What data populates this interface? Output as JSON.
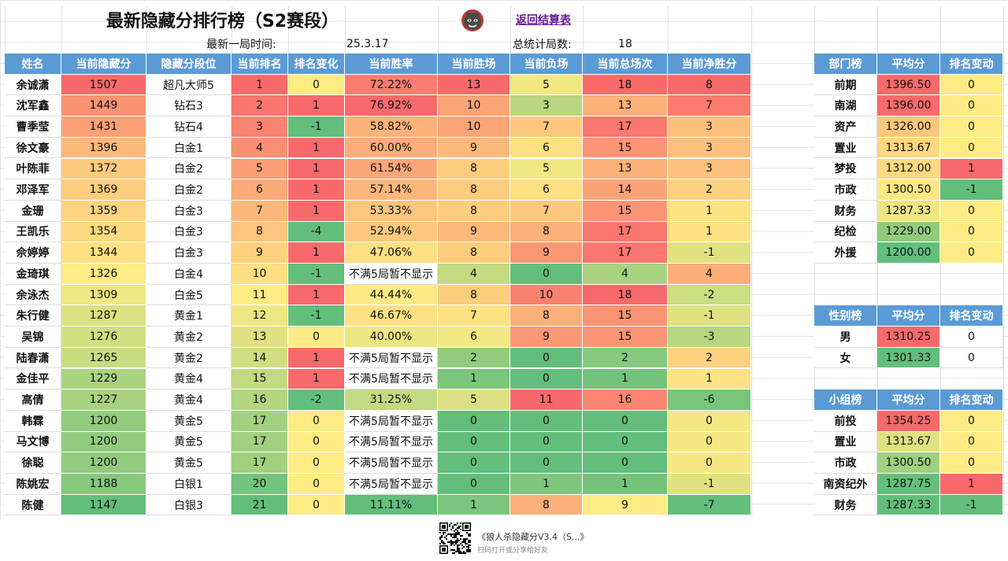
{
  "title": "最新隐藏分排行榜（S2赛段）",
  "back_link": "返回结算表",
  "meta": {
    "last_game_label": "最新一局时间:",
    "last_game_value": "25.3.17",
    "total_games_label": "总统计局数:",
    "total_games_value": "18"
  },
  "main_table": {
    "columns": [
      "姓名",
      "当前隐藏分",
      "隐藏分段位",
      "当前排名",
      "排名变化",
      "当前胜率",
      "当前胜场",
      "当前负场",
      "当前总场次",
      "当前净胜分"
    ],
    "rows": [
      [
        "余诚潇",
        "1507",
        "超凡大师5",
        "1",
        "0",
        "72.22%",
        "13",
        "5",
        "18",
        "8"
      ],
      [
        "沈军鑫",
        "1449",
        "钻石3",
        "2",
        "1",
        "76.92%",
        "10",
        "3",
        "13",
        "7"
      ],
      [
        "曹季莹",
        "1431",
        "钻石4",
        "3",
        "-1",
        "58.82%",
        "10",
        "7",
        "17",
        "3"
      ],
      [
        "徐文豪",
        "1396",
        "白金1",
        "4",
        "1",
        "60.00%",
        "9",
        "6",
        "15",
        "3"
      ],
      [
        "叶陈菲",
        "1372",
        "白金2",
        "5",
        "1",
        "61.54%",
        "8",
        "5",
        "13",
        "3"
      ],
      [
        "邓泽军",
        "1369",
        "白金2",
        "6",
        "1",
        "57.14%",
        "8",
        "6",
        "14",
        "2"
      ],
      [
        "金珊",
        "1359",
        "白金3",
        "7",
        "1",
        "53.33%",
        "8",
        "7",
        "15",
        "1"
      ],
      [
        "王凯乐",
        "1354",
        "白金3",
        "8",
        "-4",
        "52.94%",
        "9",
        "8",
        "17",
        "1"
      ],
      [
        "佘婷婷",
        "1344",
        "白金3",
        "9",
        "1",
        "47.06%",
        "8",
        "9",
        "17",
        "-1"
      ],
      [
        "金琦琪",
        "1326",
        "白金4",
        "10",
        "-1",
        "不满5局暂不显示",
        "4",
        "0",
        "4",
        "4"
      ],
      [
        "余泳杰",
        "1309",
        "白金5",
        "11",
        "1",
        "44.44%",
        "8",
        "10",
        "18",
        "-2"
      ],
      [
        "朱行健",
        "1287",
        "黄金1",
        "12",
        "-1",
        "46.67%",
        "7",
        "8",
        "15",
        "-1"
      ],
      [
        "吴锦",
        "1276",
        "黄金2",
        "13",
        "0",
        "40.00%",
        "6",
        "9",
        "15",
        "-3"
      ],
      [
        "陆春潇",
        "1265",
        "黄金2",
        "14",
        "1",
        "不满5局暂不显示",
        "2",
        "0",
        "2",
        "2"
      ],
      [
        "金佳平",
        "1229",
        "黄金4",
        "15",
        "1",
        "不满5局暂不显示",
        "1",
        "0",
        "1",
        "1"
      ],
      [
        "高倩",
        "1227",
        "黄金4",
        "16",
        "-2",
        "31.25%",
        "5",
        "11",
        "16",
        "-6"
      ],
      [
        "韩霖",
        "1200",
        "黄金5",
        "17",
        "0",
        "不满5局暂不显示",
        "0",
        "0",
        "0",
        "0"
      ],
      [
        "马文博",
        "1200",
        "黄金5",
        "17",
        "0",
        "不满5局暂不显示",
        "0",
        "0",
        "0",
        "0"
      ],
      [
        "徐聪",
        "1200",
        "黄金5",
        "17",
        "0",
        "不满5局暂不显示",
        "0",
        "0",
        "0",
        "0"
      ],
      [
        "陈姚宏",
        "1188",
        "白银1",
        "20",
        "0",
        "不满5局暂不显示",
        "0",
        "1",
        "1",
        "-1"
      ],
      [
        "陈健",
        "1147",
        "白银3",
        "21",
        "0",
        "11.11%",
        "1",
        "8",
        "9",
        "-7"
      ]
    ]
  },
  "dept_table": {
    "columns": [
      "部门榜",
      "平均分",
      "排名变动"
    ],
    "rows": [
      [
        "前期",
        "1396.50",
        "0"
      ],
      [
        "南湖",
        "1396.00",
        "0"
      ],
      [
        "资产",
        "1326.00",
        "0"
      ],
      [
        "置业",
        "1313.67",
        "0"
      ],
      [
        "梦投",
        "1312.00",
        "1"
      ],
      [
        "市政",
        "1300.50",
        "-1"
      ],
      [
        "财务",
        "1287.33",
        "0"
      ],
      [
        "纪检",
        "1229.00",
        "0"
      ],
      [
        "外援",
        "1200.00",
        "0"
      ]
    ]
  },
  "gender_table": {
    "columns": [
      "性别榜",
      "平均分",
      "排名变动"
    ],
    "rows": [
      [
        "男",
        "1310.25",
        "0"
      ],
      [
        "女",
        "1301.33",
        "0"
      ]
    ]
  },
  "group_table": {
    "columns": [
      "小组榜",
      "平均分",
      "排名变动"
    ],
    "rows": [
      [
        "前投",
        "1354.25",
        "0"
      ],
      [
        "置业",
        "1313.67",
        "0"
      ],
      [
        "市政",
        "1300.50",
        "0"
      ],
      [
        "南资纪外",
        "1287.75",
        "1"
      ],
      [
        "财务",
        "1287.33",
        "-1"
      ]
    ]
  },
  "footer": {
    "title": "《狼人杀隐藏分V3.4（S...》",
    "subtitle": "扫码打开或分享给好友"
  },
  "colors": {
    "header": "#5b9bd5",
    "high": "#f8696b",
    "mid": "#ffeb84",
    "low": "#63be7b",
    "link": "#6a1b9a"
  }
}
